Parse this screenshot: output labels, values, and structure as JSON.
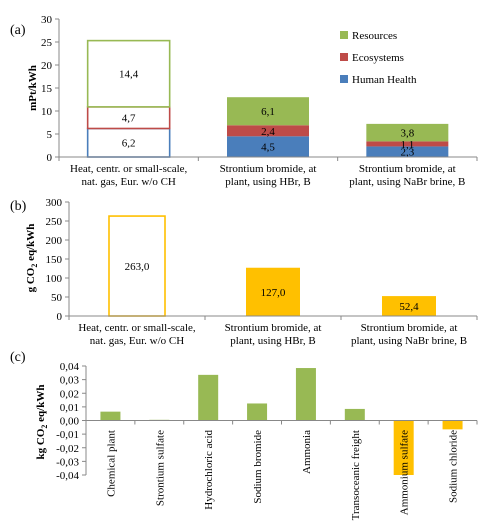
{
  "chart_data": [
    {
      "panel_label": "(a)",
      "type": "bar",
      "stacked": true,
      "ylabel": "mPt/kWh",
      "ylim": [
        0,
        30
      ],
      "yticks": [
        "0",
        "5",
        "10",
        "15",
        "20",
        "25",
        "30"
      ],
      "categories": [
        [
          "Heat, centr. or small-scale,",
          "nat. gas, Eur. w/o CH"
        ],
        [
          "Strontium bromide, at",
          "plant, using HBr, B"
        ],
        [
          "Strontium bromide, at",
          "plant, using NaBr brine, B"
        ]
      ],
      "series": [
        {
          "name": "Human Health",
          "color": "#4a7ebb",
          "values": [
            6.2,
            4.5,
            2.3
          ],
          "labels": [
            "6,2",
            "4,5",
            "2,3"
          ]
        },
        {
          "name": "Ecosystems",
          "color": "#be4b48",
          "values": [
            4.7,
            2.4,
            1.1
          ],
          "labels": [
            "4,7",
            "2,4",
            "1,1"
          ]
        },
        {
          "name": "Resources",
          "color": "#98b954",
          "values": [
            14.4,
            6.1,
            3.8
          ],
          "labels": [
            "14,4",
            "6,1",
            "3,8"
          ]
        }
      ],
      "hollow_first_bar": true,
      "legend": {
        "placement": "top-right",
        "order": [
          "Resources",
          "Ecosystems",
          "Human Health"
        ]
      },
      "grid": false
    },
    {
      "panel_label": "(b)",
      "type": "bar",
      "ylabel": "g CO2 eq/kWh",
      "ylim": [
        0,
        300
      ],
      "yticks": [
        "0",
        "50",
        "100",
        "150",
        "200",
        "250",
        "300"
      ],
      "categories": [
        [
          "Heat, centr. or small-scale,",
          "nat. gas, Eur. w/o CH"
        ],
        [
          "Strontium bromide, at",
          "plant, using HBr, B"
        ],
        [
          "Strontium bromide, at",
          "plant, using NaBr brine, B"
        ]
      ],
      "values": [
        263.0,
        127.0,
        52.4
      ],
      "labels": [
        "263,0",
        "127,0",
        "52,4"
      ],
      "color": "#ffc000",
      "hollow_first_bar": true,
      "grid": false
    },
    {
      "panel_label": "(c)",
      "type": "bar",
      "ylabel": "kg CO2 eq/kWh",
      "ylim": [
        -0.04,
        0.04
      ],
      "yticks": [
        "0,04",
        "0,03",
        "0,02",
        "0,01",
        "0,00",
        "-0,01",
        "-0,02",
        "-0,03",
        "-0,04"
      ],
      "categories": [
        "Chemical plant",
        "Strontium sulfate",
        "Hydrochloric acid",
        "Sodium bromide",
        "Ammonia",
        "Transoceanic freight",
        "Ammonium sulfate",
        "Sodium chloride"
      ],
      "values": [
        0.0065,
        0.0005,
        0.0335,
        0.0125,
        0.0385,
        0.0085,
        -0.04,
        -0.0065
      ],
      "colors": [
        "#98b954",
        "#98b954",
        "#98b954",
        "#98b954",
        "#98b954",
        "#98b954",
        "#ffc000",
        "#ffc000"
      ],
      "grid": false
    }
  ]
}
